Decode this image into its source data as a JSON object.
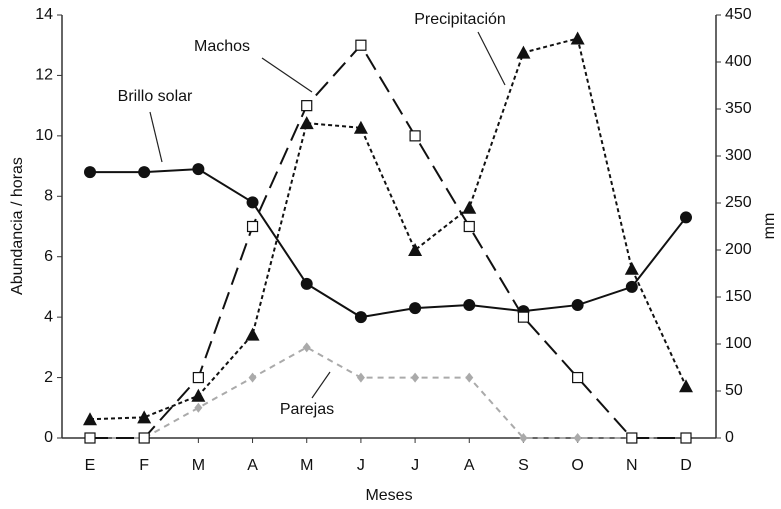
{
  "chart_data": {
    "type": "line",
    "x_label": "Meses",
    "y_label": "Abundancia / horas",
    "y2_label": "mm",
    "categories": [
      "E",
      "F",
      "M",
      "A",
      "M",
      "J",
      "J",
      "A",
      "S",
      "O",
      "N",
      "D"
    ],
    "ylim": [
      0,
      14
    ],
    "yticks": [
      0,
      2,
      4,
      6,
      8,
      10,
      12,
      14
    ],
    "y2lim": [
      0,
      450
    ],
    "y2ticks": [
      0,
      50,
      100,
      150,
      200,
      250,
      300,
      350,
      400,
      450
    ],
    "series": [
      {
        "name": "Parejas",
        "color": "#aaaaaa",
        "dash": "6 5",
        "marker": "diamond",
        "values": [
          0,
          0,
          1,
          2,
          3,
          2,
          2,
          2,
          0,
          0,
          0,
          0
        ]
      },
      {
        "name": "Brillo solar",
        "color": "#111111",
        "dash": "none",
        "marker": "circle",
        "values": [
          8.8,
          8.8,
          8.9,
          7.8,
          5.1,
          4.0,
          4.3,
          4.4,
          4.2,
          4.4,
          5.0,
          7.3
        ]
      },
      {
        "name": "Machos",
        "color": "#111111",
        "dash": "18 8",
        "marker": "square",
        "values": [
          0,
          0,
          2,
          7,
          11,
          13,
          10,
          7,
          4,
          2,
          0,
          0
        ]
      },
      {
        "name": "Precipitación",
        "color": "#111111",
        "dash": "4 3",
        "marker": "triangle",
        "axis": "y2",
        "values": [
          20,
          22,
          45,
          110,
          335,
          330,
          200,
          245,
          410,
          425,
          180,
          55
        ]
      }
    ]
  }
}
